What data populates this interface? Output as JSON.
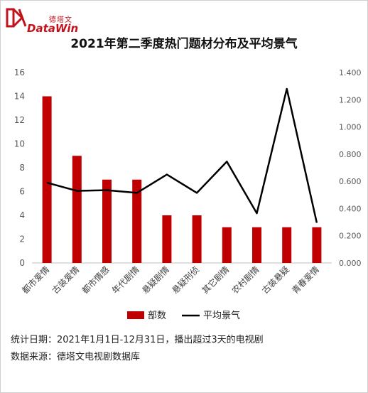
{
  "brand": {
    "logo_cn": "德塔文",
    "logo_en": "DataWin",
    "accent": "#c3121c"
  },
  "chart_data": {
    "type": "bar",
    "title": "2021年第二季度热门题材分布及平均景气",
    "categories": [
      "都市爱情",
      "古装爱情",
      "都市情感",
      "年代剧情",
      "悬疑剧情",
      "悬疑刑侦",
      "其它剧情",
      "农村剧情",
      "古装悬疑",
      "青春爱情"
    ],
    "series": [
      {
        "name": "部数",
        "type": "bar",
        "axis": "left",
        "color": "#c00000",
        "values": [
          14,
          9,
          7,
          7,
          4,
          4,
          3,
          3,
          3,
          3
        ]
      },
      {
        "name": "平均景气",
        "type": "line",
        "axis": "right",
        "color": "#000000",
        "values": [
          0.59,
          0.53,
          0.535,
          0.515,
          0.65,
          0.515,
          0.745,
          0.365,
          1.28,
          0.295
        ]
      }
    ],
    "ylim": [
      0,
      16
    ],
    "y_ticks": [
      "0",
      "2",
      "4",
      "6",
      "8",
      "10",
      "12",
      "14",
      "16"
    ],
    "y2lim": [
      0,
      1.4
    ],
    "y2_ticks": [
      "0.000",
      "0.200",
      "0.400",
      "0.600",
      "0.800",
      "1.000",
      "1.200",
      "1.400"
    ],
    "grid": false,
    "legend_position": "bottom"
  },
  "footer": {
    "line1": "统计日期：2021年1月1日-12月31日，播出超过3天的电视剧",
    "line2": "数据来源：德塔文电视剧数据库"
  }
}
